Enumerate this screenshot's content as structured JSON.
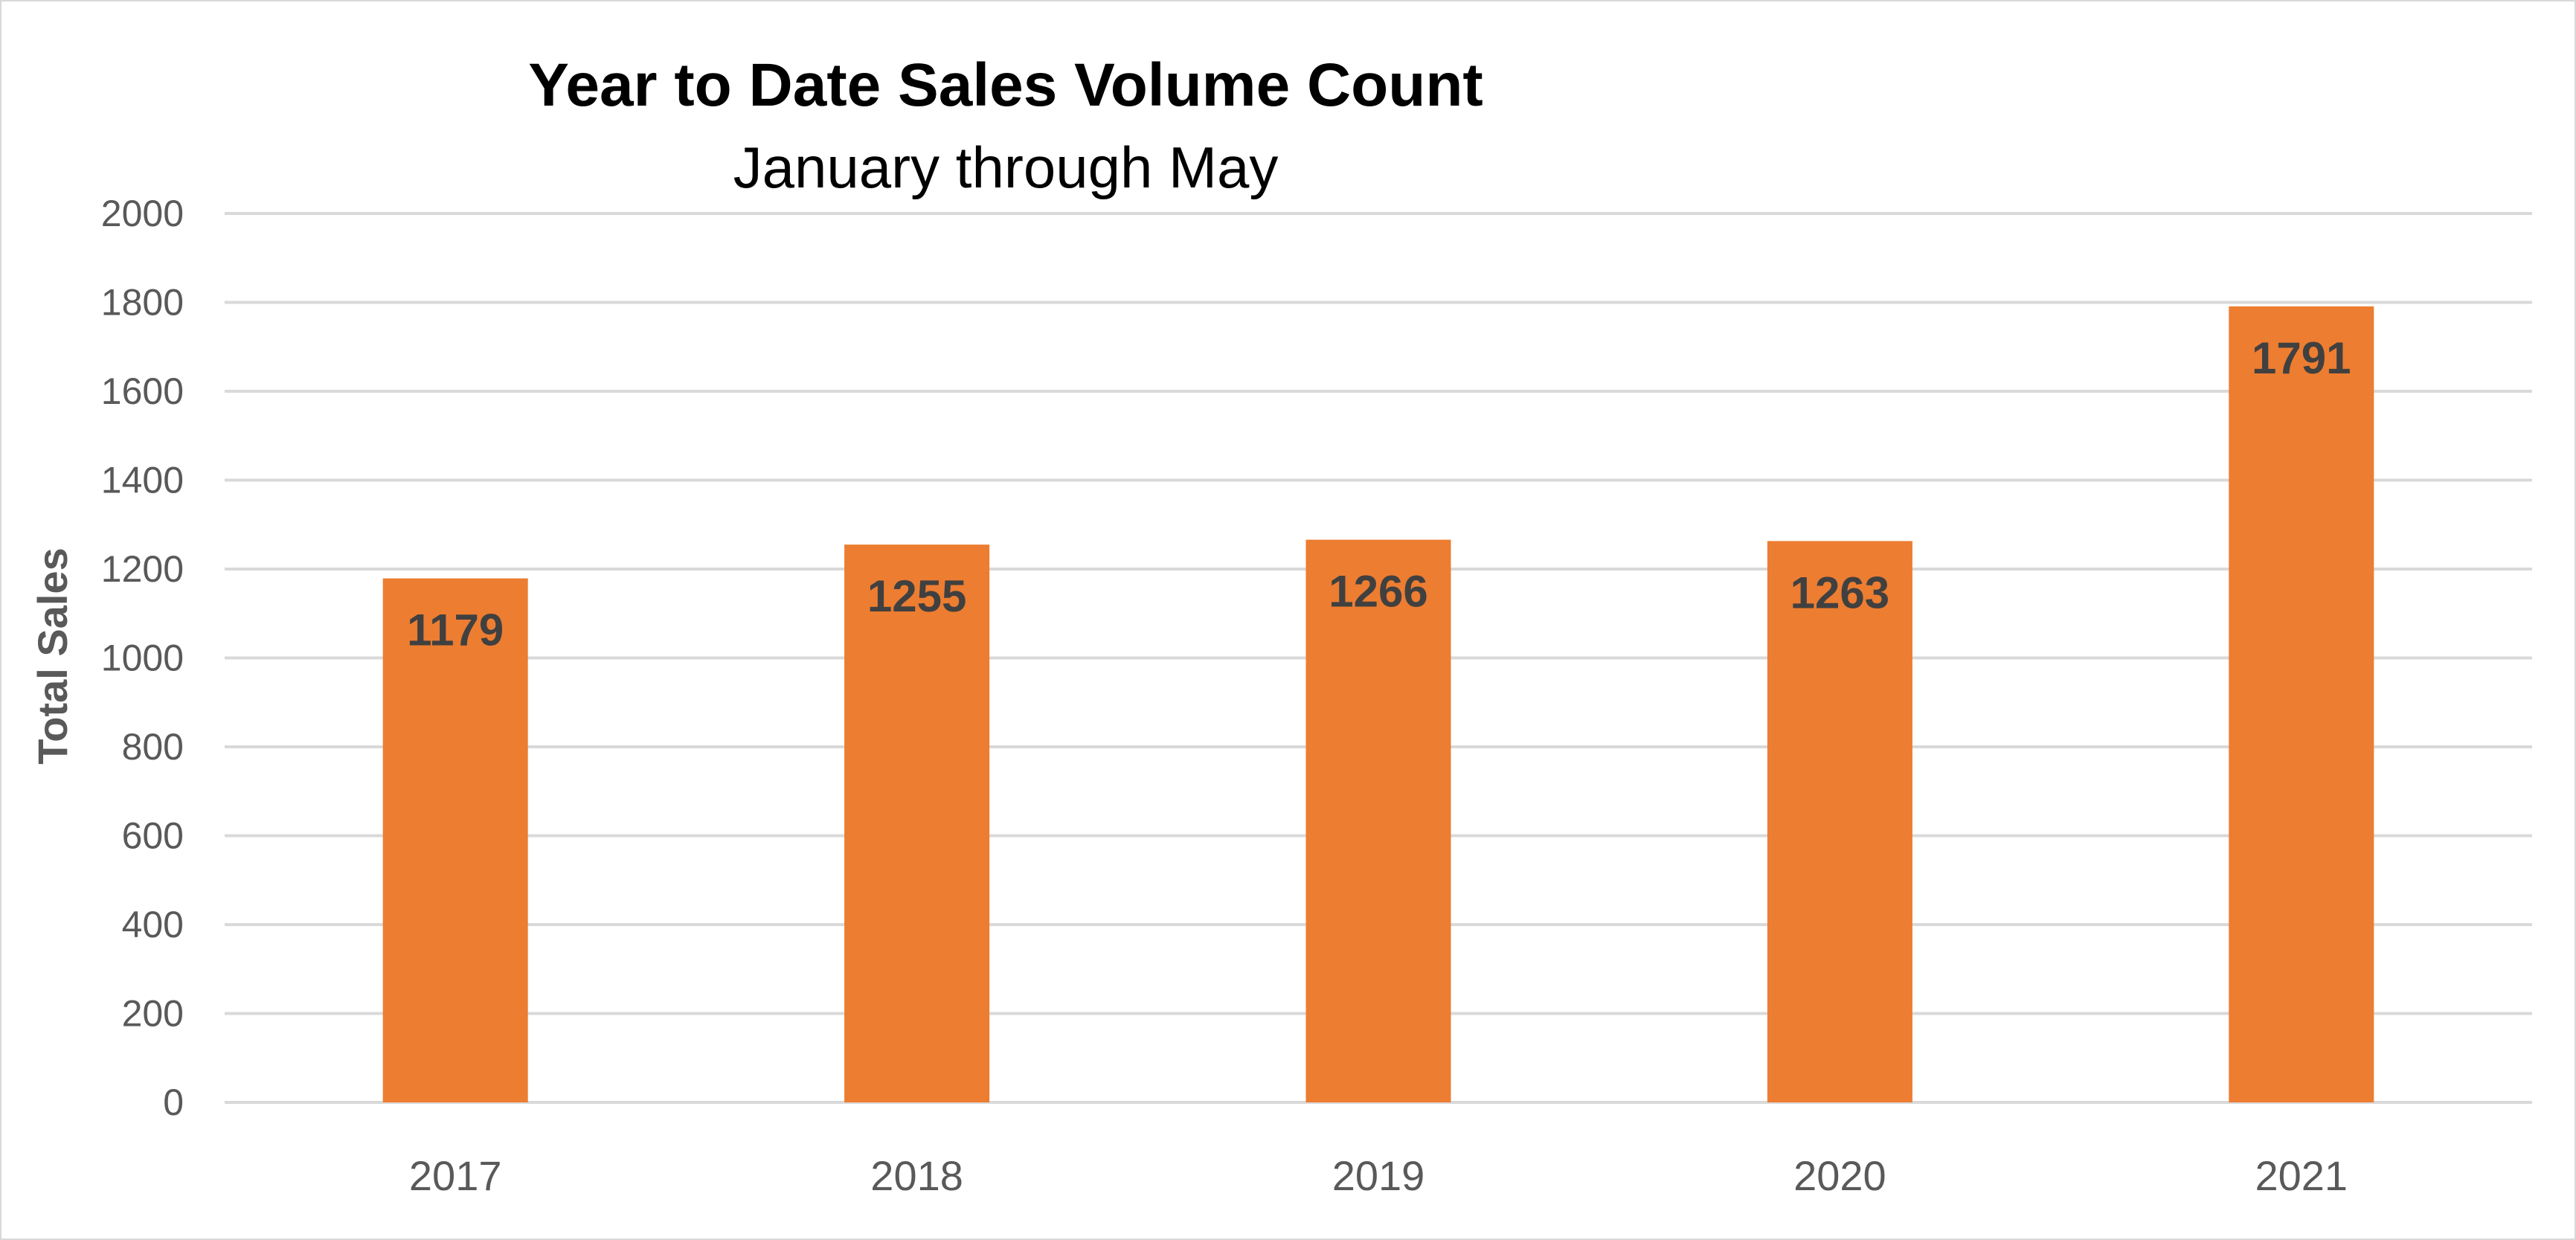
{
  "chart_data": {
    "type": "bar",
    "title": "Year to Date Sales Volume Count",
    "subtitle": "January through May",
    "xlabel": "",
    "ylabel": "Total Sales",
    "categories": [
      "2017",
      "2018",
      "2019",
      "2020",
      "2021"
    ],
    "values": [
      1179,
      1255,
      1266,
      1263,
      1791
    ],
    "data_labels": [
      "1179",
      "1255",
      "1266",
      "1263",
      "1791"
    ],
    "ylim": [
      0,
      2000
    ],
    "yticks": [
      0,
      200,
      400,
      600,
      800,
      1000,
      1200,
      1400,
      1600,
      1800,
      2000
    ],
    "grid": true,
    "legend": "none",
    "bar_color": "#ED7D31"
  }
}
